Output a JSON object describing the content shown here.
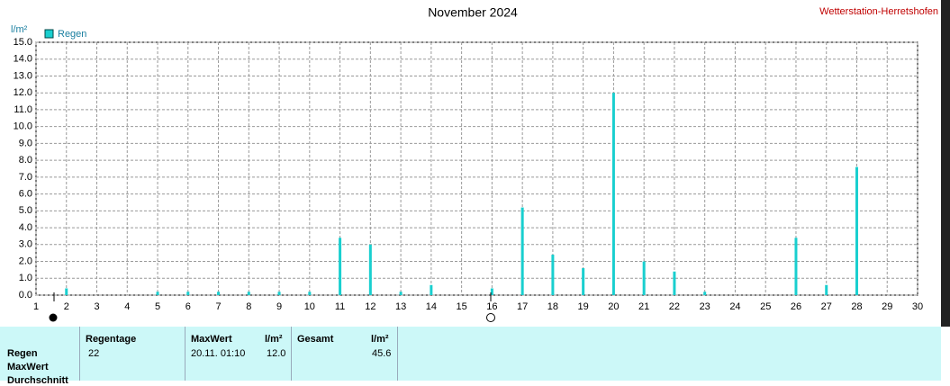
{
  "chart_data": {
    "type": "bar",
    "title": "November 2024",
    "source": "Wetterstation-Herretshofen",
    "y_unit": "l/m²",
    "series": [
      {
        "name": "Regen",
        "color": "#19cfcf",
        "x": [
          2,
          5,
          6,
          7,
          8,
          9,
          10,
          11,
          12,
          13,
          14,
          16,
          17,
          18,
          19,
          20,
          21,
          22,
          23,
          26,
          27,
          28
        ],
        "values": [
          0.4,
          0.2,
          0.2,
          0.2,
          0.2,
          0.2,
          0.2,
          3.4,
          3.0,
          0.2,
          0.6,
          0.4,
          5.2,
          2.4,
          1.6,
          12.0,
          2.0,
          1.4,
          0.2,
          3.4,
          0.6,
          7.6
        ]
      }
    ],
    "xlim": [
      1,
      30
    ],
    "xticks": [
      1,
      2,
      3,
      4,
      5,
      6,
      7,
      8,
      9,
      10,
      11,
      12,
      13,
      14,
      15,
      16,
      17,
      18,
      19,
      20,
      21,
      22,
      23,
      24,
      25,
      26,
      27,
      28,
      29,
      30
    ],
    "ylim": [
      0,
      15
    ],
    "yticks": [
      {
        "value": 0,
        "label": "0.0"
      },
      {
        "value": 1,
        "label": "1.0"
      },
      {
        "value": 2,
        "label": "2.0"
      },
      {
        "value": 3,
        "label": "3.0"
      },
      {
        "value": 4,
        "label": "4.0"
      },
      {
        "value": 5,
        "label": "5.0"
      },
      {
        "value": 6,
        "label": "6.0"
      },
      {
        "value": 7,
        "label": "7.0"
      },
      {
        "value": 8,
        "label": "8.0"
      },
      {
        "value": 9,
        "label": "9.0"
      },
      {
        "value": 10,
        "label": "10.0"
      },
      {
        "value": 11,
        "label": "11.0"
      },
      {
        "value": 12,
        "label": "12.0"
      },
      {
        "value": 13,
        "label": "13.0"
      },
      {
        "value": 14,
        "label": "14.0"
      },
      {
        "value": 15,
        "label": "15.0"
      }
    ],
    "grid": true
  },
  "table": {
    "row_labels": [
      "Regen",
      "MaxWert",
      "Durchschnitt"
    ],
    "headers": [
      "Regentage",
      "MaxWert",
      "l/m²",
      "Gesamt",
      "l/m²"
    ],
    "cells": [
      "22",
      "20.11. 01:10",
      "12.0",
      "45.6"
    ]
  }
}
